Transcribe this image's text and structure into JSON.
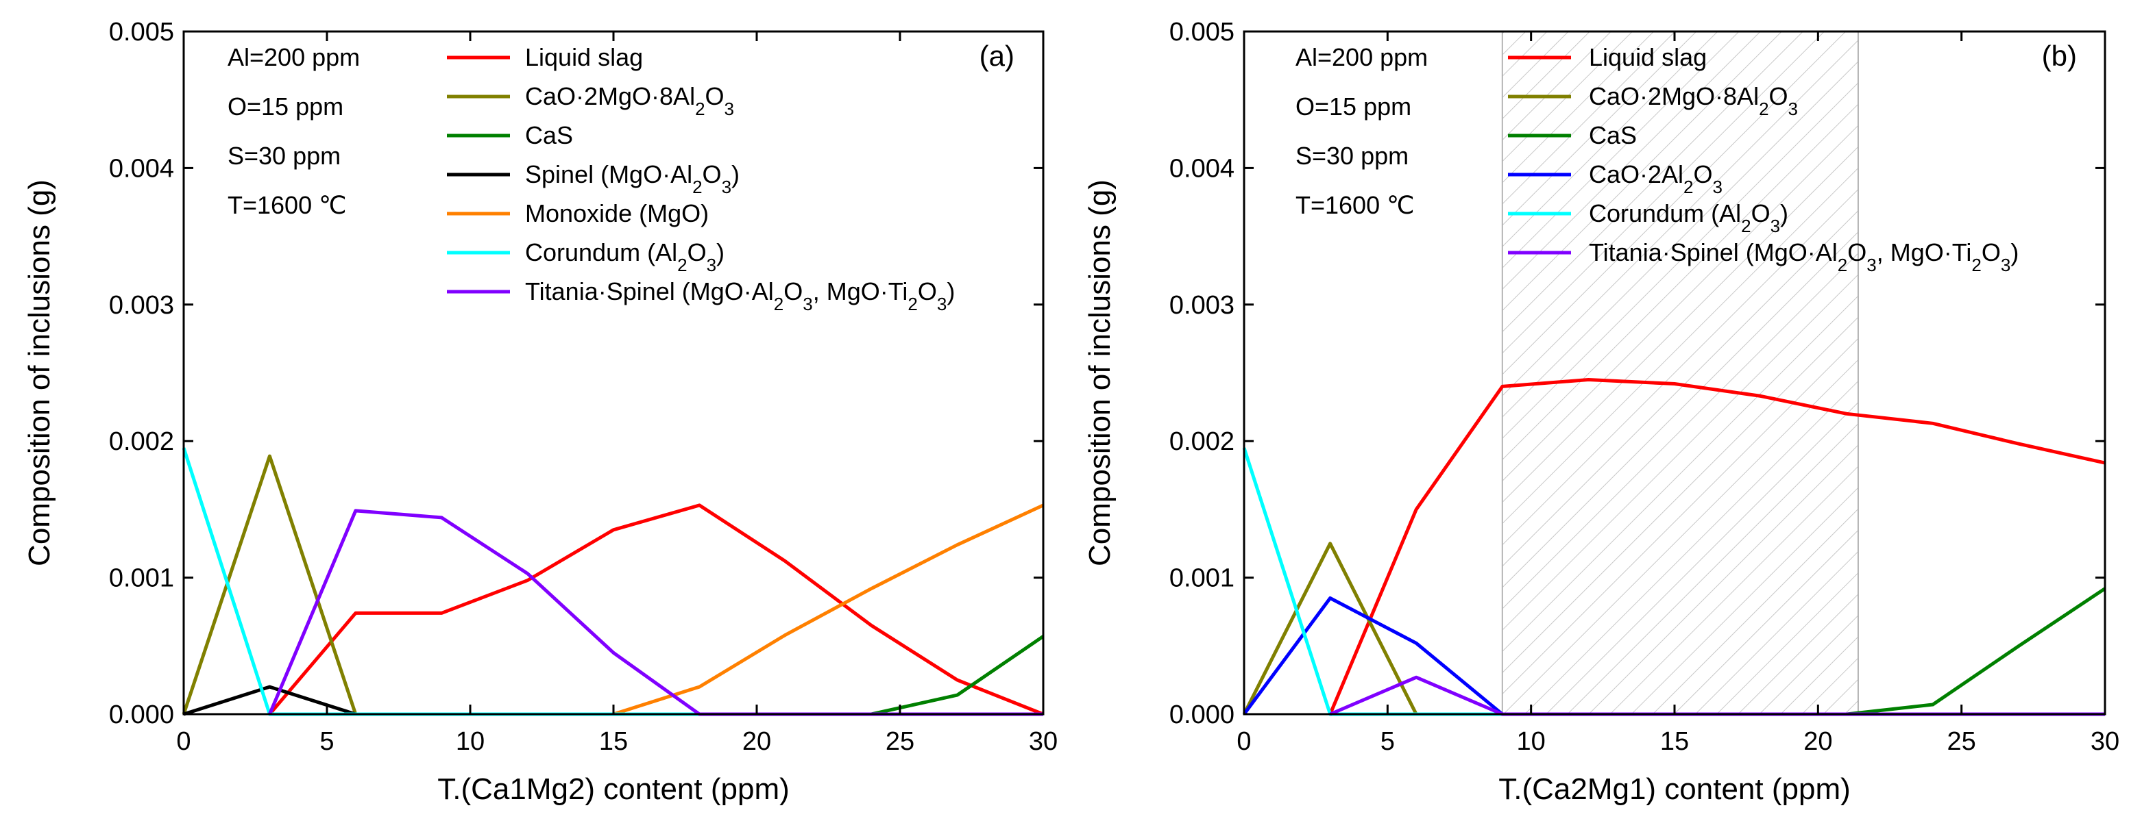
{
  "chart_data": [
    {
      "type": "line",
      "panel_label": "(a)",
      "xlabel": "T.(Ca1Mg2) content (ppm)",
      "ylabel": "Composition of inclusions (g)",
      "xlim": [
        0,
        30
      ],
      "ylim": [
        0,
        0.005
      ],
      "xticks": [
        "0",
        "5",
        "10",
        "15",
        "20",
        "25",
        "30"
      ],
      "yticks": [
        "0.000",
        "0.001",
        "0.002",
        "0.003",
        "0.004",
        "0.005"
      ],
      "conditions": [
        "Al=200 ppm",
        "O=15 ppm",
        "S=30 ppm",
        "T=1600 ℃"
      ],
      "legend_position": "top-right",
      "series": [
        {
          "name": "Liquid slag",
          "label_parts": [
            "Liquid slag"
          ],
          "color": "#ff0000",
          "points": [
            [
              3,
              0
            ],
            [
              6,
              0.00074
            ],
            [
              9,
              0.00074
            ],
            [
              12,
              0.00098
            ],
            [
              15,
              0.00135
            ],
            [
              18,
              0.00153
            ],
            [
              21,
              0.00112
            ],
            [
              24,
              0.00065
            ],
            [
              27,
              0.00025
            ],
            [
              30,
              0
            ]
          ]
        },
        {
          "name": "CaO·2MgO·8Al2O3",
          "label_parts": [
            "CaO·2MgO·8Al",
            "2",
            "O",
            "3"
          ],
          "color": "#808000",
          "points": [
            [
              0,
              0
            ],
            [
              3,
              0.00189
            ],
            [
              6,
              0
            ]
          ]
        },
        {
          "name": "CaS",
          "label_parts": [
            "CaS"
          ],
          "color": "#008000",
          "points": [
            [
              24,
              0
            ],
            [
              27,
              0.00014
            ],
            [
              30,
              0.00057
            ]
          ]
        },
        {
          "name": "Spinel (MgO·Al2O3)",
          "label_parts": [
            "Spinel (MgO·Al",
            "2",
            "O",
            "3",
            ")"
          ],
          "color": "#000000",
          "points": [
            [
              0,
              0
            ],
            [
              3,
              0.0002
            ],
            [
              6,
              0
            ]
          ]
        },
        {
          "name": "Monoxide (MgO)",
          "label_parts": [
            "Monoxide (MgO)"
          ],
          "color": "#ff8000",
          "points": [
            [
              15,
              0
            ],
            [
              18,
              0.0002
            ],
            [
              21,
              0.00058
            ],
            [
              24,
              0.00092
            ],
            [
              27,
              0.00124
            ],
            [
              30,
              0.00153
            ]
          ]
        },
        {
          "name": "Corundum (Al2O3)",
          "label_parts": [
            "Corundum (Al",
            "2",
            "O",
            "3",
            ")"
          ],
          "color": "#00ffff",
          "points": [
            [
              0,
              0.00195
            ],
            [
              3,
              0
            ],
            [
              30,
              0
            ]
          ]
        },
        {
          "name": "Titania·Spinel (MgO·Al2O3, MgO·Ti2O3)",
          "label_parts": [
            "Titania·Spinel (MgO·Al",
            "2",
            "O",
            "3",
            ", MgO·Ti",
            "2",
            "O",
            "3",
            ")"
          ],
          "color": "#8000ff",
          "points": [
            [
              3,
              0
            ],
            [
              6,
              0.00149
            ],
            [
              9,
              0.00144
            ],
            [
              12,
              0.00103
            ],
            [
              15,
              0.00045
            ],
            [
              18,
              0
            ],
            [
              30,
              0
            ]
          ]
        }
      ]
    },
    {
      "type": "line",
      "panel_label": "(b)",
      "xlabel": "T.(Ca2Mg1) content (ppm)",
      "ylabel": "Composition of inclusions (g)",
      "xlim": [
        0,
        30
      ],
      "ylim": [
        0,
        0.005
      ],
      "xticks": [
        "0",
        "5",
        "10",
        "15",
        "20",
        "25",
        "30"
      ],
      "yticks": [
        "0.000",
        "0.001",
        "0.002",
        "0.003",
        "0.004",
        "0.005"
      ],
      "conditions": [
        "Al=200 ppm",
        "O=15 ppm",
        "S=30 ppm",
        "T=1600 ℃"
      ],
      "legend_position": "top-right",
      "shaded_region_x": [
        9,
        21.4
      ],
      "series": [
        {
          "name": "Liquid slag",
          "label_parts": [
            "Liquid slag"
          ],
          "color": "#ff0000",
          "points": [
            [
              3,
              0
            ],
            [
              6,
              0.0015
            ],
            [
              9,
              0.0024
            ],
            [
              12,
              0.00245
            ],
            [
              15,
              0.00242
            ],
            [
              18,
              0.00233
            ],
            [
              21,
              0.0022
            ],
            [
              24,
              0.00213
            ],
            [
              27,
              0.00198
            ],
            [
              30,
              0.00184
            ]
          ]
        },
        {
          "name": "CaO·2MgO·8Al2O3",
          "label_parts": [
            "CaO·2MgO·8Al",
            "2",
            "O",
            "3"
          ],
          "color": "#808000",
          "points": [
            [
              0,
              0
            ],
            [
              3,
              0.00125
            ],
            [
              6,
              0
            ]
          ]
        },
        {
          "name": "CaS",
          "label_parts": [
            "CaS"
          ],
          "color": "#008000",
          "points": [
            [
              21,
              0
            ],
            [
              24,
              7e-05
            ],
            [
              27,
              0.0005
            ],
            [
              30,
              0.00092
            ]
          ]
        },
        {
          "name": "CaO·2Al2O3",
          "label_parts": [
            "CaO·2Al",
            "2",
            "O",
            "3"
          ],
          "color": "#0000ff",
          "points": [
            [
              0,
              0
            ],
            [
              3,
              0.00085
            ],
            [
              6,
              0.00052
            ],
            [
              9,
              0
            ]
          ]
        },
        {
          "name": "Corundum (Al2O3)",
          "label_parts": [
            "Corundum (Al",
            "2",
            "O",
            "3",
            ")"
          ],
          "color": "#00ffff",
          "points": [
            [
              0,
              0.00195
            ],
            [
              3,
              0
            ],
            [
              30,
              0
            ]
          ]
        },
        {
          "name": "Titania·Spinel (MgO·Al2O3, MgO·Ti2O3)",
          "label_parts": [
            "Titania·Spinel (MgO·Al",
            "2",
            "O",
            "3",
            ", MgO·Ti",
            "2",
            "O",
            "3",
            ")"
          ],
          "color": "#8000ff",
          "points": [
            [
              3,
              0
            ],
            [
              6,
              0.00027
            ],
            [
              9,
              0
            ],
            [
              30,
              0
            ]
          ]
        }
      ]
    }
  ]
}
